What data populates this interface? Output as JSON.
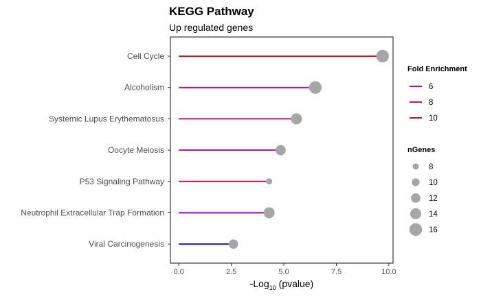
{
  "chart_data": {
    "type": "lollipop",
    "title": "KEGG Pathway",
    "subtitle": "Up regulated genes",
    "xlabel_prefix": "-Log",
    "xlabel_sub": "10",
    "xlabel_suffix": " (pvalue)",
    "xlim": [
      -0.4,
      10.2
    ],
    "xticks": [
      0,
      2.5,
      5,
      7.5,
      10
    ],
    "xtick_labels": [
      "0.0",
      "2.5",
      "5.0",
      "7.5",
      "10.0"
    ],
    "grid": false,
    "legend_position": "right",
    "point_color": "#a6a6a6",
    "categories": [
      "Cell Cycle",
      "Alcoholism",
      "Systemic Lupus Erythematosus",
      "Oocyte Meiosis",
      "P53 Signaling Pathway",
      "Neutrophil Extracellular Trap Formation",
      "Viral Carcinogenesis"
    ],
    "values": [
      9.7,
      6.5,
      5.6,
      4.85,
      4.3,
      4.3,
      2.6
    ],
    "fold_enrichment": [
      10.2,
      7.2,
      8.1,
      7.4,
      9.0,
      6.1,
      4.6
    ],
    "ngenes": [
      16,
      16,
      14,
      13,
      8,
      14,
      12
    ],
    "legend_fold": {
      "title": "Fold Enrichment",
      "items": [
        {
          "label": "6",
          "color": "#8b10c9"
        },
        {
          "label": "8",
          "color": "#c8117a"
        },
        {
          "label": "10",
          "color": "#d4121e"
        }
      ]
    },
    "legend_genes": {
      "title": "nGenes",
      "items": [
        {
          "label": "8",
          "value": 8
        },
        {
          "label": "10",
          "value": 10
        },
        {
          "label": "12",
          "value": 12
        },
        {
          "label": "14",
          "value": 14
        },
        {
          "label": "16",
          "value": 16
        }
      ]
    }
  }
}
